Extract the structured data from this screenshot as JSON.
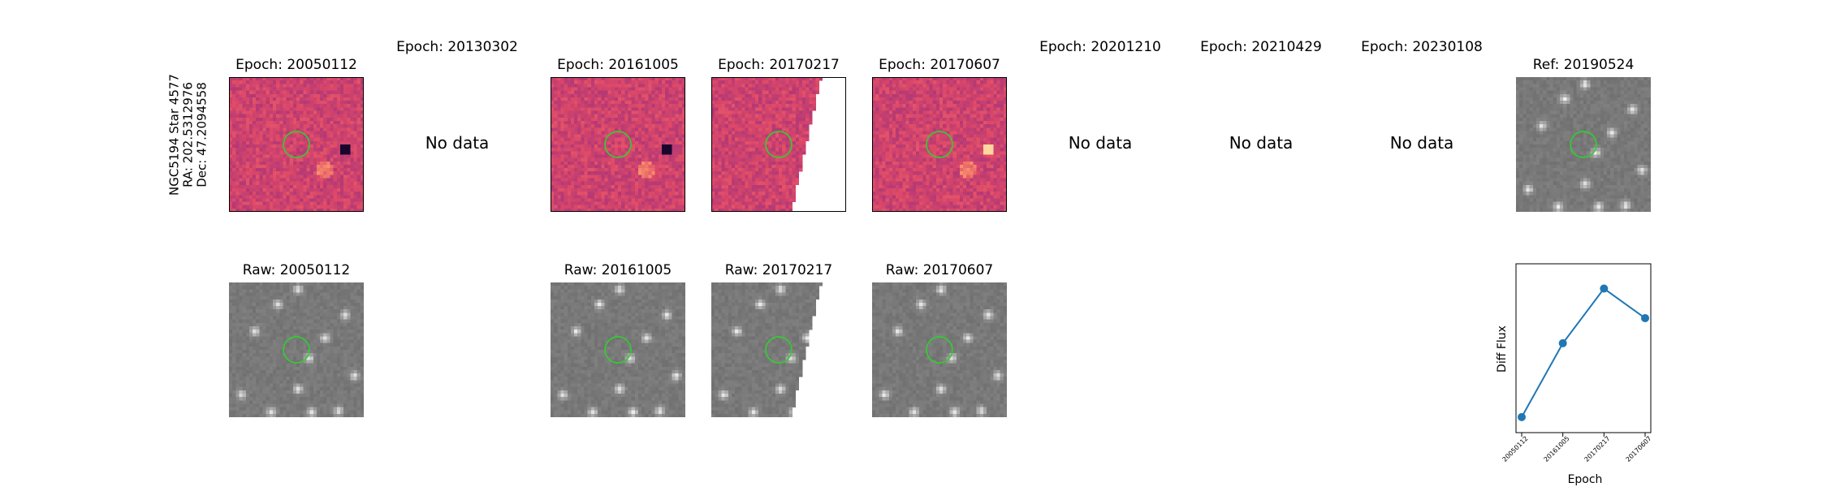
{
  "star": {
    "name": "NGC5194 Star 4577",
    "ra": "RA: 202.5312976",
    "dec": "Dec: 47.2094558"
  },
  "no_data_text": "No data",
  "epochs": [
    {
      "id": "20050112",
      "title": "Epoch: 20050112",
      "has_data": true,
      "raw_title": "Raw: 20050112"
    },
    {
      "id": "20130302",
      "title": "Epoch: 20130302",
      "has_data": false
    },
    {
      "id": "20161005",
      "title": "Epoch: 20161005",
      "has_data": true,
      "raw_title": "Raw: 20161005"
    },
    {
      "id": "20170217",
      "title": "Epoch: 20170217",
      "has_data": true,
      "raw_title": "Raw: 20170217",
      "edge_clipped": true
    },
    {
      "id": "20170607",
      "title": "Epoch: 20170607",
      "has_data": true,
      "raw_title": "Raw: 20170607"
    },
    {
      "id": "20201210",
      "title": "Epoch: 20201210",
      "has_data": false
    },
    {
      "id": "20210429",
      "title": "Epoch: 20210429",
      "has_data": false
    },
    {
      "id": "20230108",
      "title": "Epoch: 20230108",
      "has_data": false
    }
  ],
  "reference": {
    "title": "Ref: 20190524"
  },
  "colors": {
    "diff_colormap": "magma",
    "raw_colormap": "gray",
    "aperture": "#33cc33",
    "line": "#1f77b4"
  },
  "chart_data": {
    "type": "line",
    "title": "",
    "xlabel": "Epoch",
    "ylabel": "Diff Flux",
    "x": [
      "20050112",
      "20161005",
      "20170217",
      "20170607"
    ],
    "y": [
      0.05,
      0.55,
      0.92,
      0.72
    ],
    "y_ticks_shown": false,
    "marker": "circle",
    "grid": false
  }
}
